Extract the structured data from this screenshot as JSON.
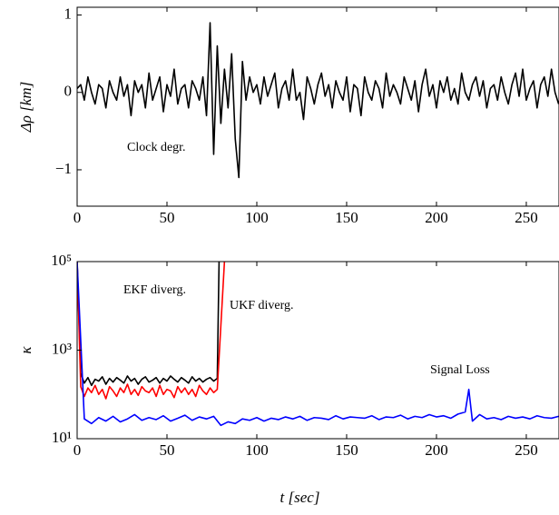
{
  "chart_data": [
    {
      "type": "line",
      "y_label": "Δρ [km]",
      "xlim": [
        0,
        268.2
      ],
      "xticks": [
        0,
        50,
        100,
        150,
        200,
        250
      ],
      "ylim": [
        -1.47,
        1.1
      ],
      "yticks": [
        {
          "value": -1,
          "label": "−1"
        },
        0,
        1
      ],
      "annotations": [
        "Clock degr."
      ],
      "series": [
        {
          "color": "#000000",
          "x": [
            0,
            2,
            4,
            6,
            8,
            10,
            12,
            14,
            16,
            18,
            20,
            22,
            24,
            26,
            28,
            30,
            32,
            34,
            36,
            38,
            40,
            42,
            44,
            46,
            48,
            50,
            52,
            54,
            56,
            58,
            60,
            62,
            64,
            66,
            68,
            70,
            72,
            74,
            76,
            78,
            80,
            82,
            84,
            86,
            88,
            90,
            92,
            94,
            96,
            98,
            100,
            102,
            104,
            106,
            108,
            110,
            112,
            114,
            116,
            118,
            120,
            122,
            124,
            126,
            128,
            130,
            132,
            134,
            136,
            138,
            140,
            142,
            144,
            146,
            148,
            150,
            152,
            154,
            156,
            158,
            160,
            162,
            164,
            166,
            168,
            170,
            172,
            174,
            176,
            178,
            180,
            182,
            184,
            186,
            188,
            190,
            192,
            194,
            196,
            198,
            200,
            202,
            204,
            206,
            208,
            210,
            212,
            214,
            216,
            218,
            220,
            222,
            224,
            226,
            228,
            230,
            232,
            234,
            236,
            238,
            240,
            242,
            244,
            246,
            248,
            250,
            252,
            254,
            256,
            258,
            260,
            262,
            264,
            266,
            268
          ],
          "values": [
            0.05,
            0.1,
            -0.1,
            0.2,
            0,
            -0.15,
            0.1,
            0.05,
            -0.2,
            0.15,
            0,
            -0.1,
            0.2,
            -0.05,
            0.1,
            -0.3,
            0.15,
            0,
            0.1,
            -0.2,
            0.25,
            -0.1,
            0.05,
            0.2,
            -0.25,
            0.1,
            -0.05,
            0.3,
            -0.15,
            0.05,
            0.1,
            -0.2,
            0.15,
            0.05,
            -0.1,
            0.2,
            -0.3,
            0.9,
            -0.8,
            0.6,
            -0.4,
            0.3,
            -0.2,
            0.5,
            -0.6,
            -1.1,
            0.4,
            -0.1,
            0.2,
            0,
            0.1,
            -0.15,
            0.2,
            -0.05,
            0.1,
            0.25,
            -0.2,
            0.05,
            0.15,
            -0.1,
            0.3,
            -0.1,
            0,
            -0.35,
            0.2,
            0.05,
            -0.15,
            0.1,
            0.25,
            -0.05,
            0.1,
            -0.2,
            0.15,
            0,
            -0.1,
            0.2,
            -0.25,
            0.1,
            0.05,
            -0.3,
            0.2,
            0,
            -0.1,
            0.15,
            0.05,
            -0.2,
            0.25,
            -0.05,
            0.1,
            0,
            -0.15,
            0.2,
            0.05,
            -0.1,
            0.15,
            -0.25,
            0.1,
            0.3,
            -0.05,
            0.1,
            -0.2,
            0.15,
            0,
            0.2,
            -0.1,
            0.05,
            -0.15,
            0.25,
            0,
            -0.1,
            0.1,
            0.2,
            -0.05,
            0.15,
            -0.2,
            0.05,
            0.1,
            -0.1,
            0.2,
            0,
            -0.15,
            0.1,
            0.25,
            -0.05,
            0.3,
            -0.1,
            0.05,
            0.15,
            -0.2,
            0.1,
            0.2,
            -0.05,
            0.3,
            0,
            -0.15
          ]
        }
      ]
    },
    {
      "type": "line",
      "x_label": "t [sec]",
      "y_label": "κ",
      "log_y": true,
      "xlim": [
        0,
        268.2
      ],
      "xticks": [
        0,
        50,
        100,
        150,
        200,
        250
      ],
      "ylim": [
        10,
        100000
      ],
      "yticks": [
        {
          "value": 10,
          "label": "10¹"
        },
        {
          "value": 1000,
          "label": "10³"
        },
        {
          "value": 100000,
          "label": "10⁵"
        }
      ],
      "annotations": [
        "EKF diverg.",
        "UKF diverg.",
        "Signal Loss"
      ],
      "series": [
        {
          "color": "#000000",
          "x": [
            0,
            2,
            4,
            6,
            8,
            10,
            12,
            14,
            16,
            18,
            20,
            22,
            24,
            26,
            28,
            30,
            32,
            34,
            36,
            38,
            40,
            42,
            44,
            46,
            48,
            50,
            52,
            54,
            56,
            58,
            60,
            62,
            64,
            66,
            68,
            70,
            72,
            74,
            76,
            78,
            79
          ],
          "values": [
            100000,
            300,
            180,
            240,
            160,
            220,
            200,
            250,
            170,
            230,
            190,
            240,
            210,
            180,
            260,
            200,
            230,
            170,
            220,
            250,
            190,
            210,
            240,
            180,
            230,
            200,
            260,
            220,
            190,
            240,
            210,
            180,
            250,
            200,
            230,
            190,
            220,
            240,
            200,
            230,
            100000
          ]
        },
        {
          "color": "#ff0000",
          "x": [
            0,
            2,
            4,
            6,
            8,
            10,
            12,
            14,
            16,
            18,
            20,
            22,
            24,
            26,
            28,
            30,
            32,
            34,
            36,
            38,
            40,
            42,
            44,
            46,
            48,
            50,
            52,
            54,
            56,
            58,
            60,
            62,
            64,
            66,
            68,
            70,
            72,
            74,
            76,
            78,
            82
          ],
          "values": [
            100000,
            150,
            90,
            140,
            110,
            160,
            100,
            130,
            80,
            150,
            120,
            90,
            140,
            110,
            170,
            100,
            130,
            95,
            150,
            120,
            110,
            140,
            90,
            160,
            100,
            130,
            120,
            85,
            150,
            110,
            140,
            100,
            130,
            90,
            160,
            120,
            100,
            140,
            110,
            130,
            100000
          ]
        },
        {
          "color": "#0000ff",
          "x": [
            0,
            4,
            8,
            12,
            16,
            20,
            24,
            28,
            32,
            36,
            40,
            44,
            48,
            52,
            56,
            60,
            64,
            68,
            72,
            76,
            80,
            84,
            88,
            92,
            96,
            100,
            104,
            108,
            112,
            116,
            120,
            124,
            128,
            132,
            136,
            140,
            144,
            148,
            152,
            156,
            160,
            164,
            168,
            172,
            176,
            180,
            184,
            188,
            192,
            196,
            200,
            204,
            208,
            212,
            216,
            218,
            220,
            224,
            228,
            232,
            236,
            240,
            244,
            248,
            252,
            256,
            260,
            264,
            268
          ],
          "values": [
            100000,
            28,
            22,
            30,
            25,
            32,
            24,
            28,
            35,
            26,
            30,
            27,
            33,
            25,
            29,
            34,
            26,
            31,
            28,
            32,
            20,
            24,
            22,
            28,
            26,
            30,
            25,
            29,
            27,
            31,
            28,
            32,
            26,
            30,
            29,
            27,
            33,
            28,
            31,
            30,
            29,
            33,
            27,
            31,
            30,
            34,
            28,
            32,
            30,
            35,
            31,
            33,
            29,
            36,
            40,
            130,
            25,
            35,
            28,
            30,
            27,
            32,
            29,
            31,
            28,
            33,
            30,
            29,
            32
          ]
        }
      ]
    }
  ]
}
